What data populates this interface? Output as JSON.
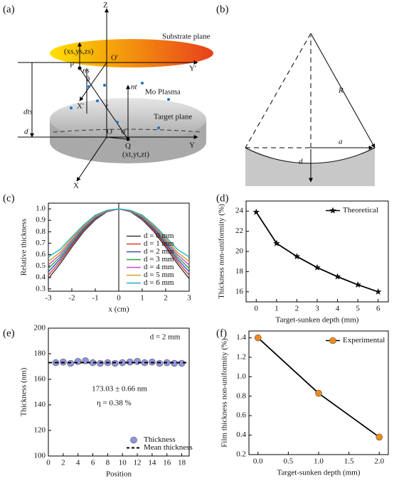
{
  "panel_labels": [
    "(a)",
    "(b)",
    "(c)",
    "(d)",
    "(e)",
    "(f)"
  ],
  "diagram_a": {
    "labels": [
      "Z",
      "Substrate plane",
      "O'",
      "Y'",
      "(xs,ys,zs)",
      "P",
      "ns",
      "θ",
      "X'",
      "nt",
      "Mo Plasma",
      "r",
      "Target plane",
      "O",
      "φ",
      "Q",
      "(xt,yt,zt)",
      "Y",
      "X",
      "dts",
      "d"
    ]
  },
  "diagram_b": {
    "labels": [
      "R",
      "a",
      "d"
    ]
  },
  "chart_data": [
    {
      "type": "line",
      "xlabel": "x (cm)",
      "ylabel": "Relative thickness",
      "x": [
        -3,
        -2.5,
        -2,
        -1.5,
        -1,
        -0.5,
        0,
        0.5,
        1,
        1.5,
        2,
        2.5,
        3
      ],
      "xlim": [
        -3,
        3
      ],
      "xticks": [
        -3,
        -2,
        -1,
        0,
        1,
        2,
        3
      ],
      "ylim": [
        0.28,
        1.05
      ],
      "yticks": [
        0.3,
        0.4,
        0.5,
        0.6,
        0.7,
        0.8,
        0.9,
        {
          "value": 1,
          "label": "1.0"
        }
      ],
      "legend": "lower right",
      "series": [
        {
          "name": "d = 0 mm",
          "color": "#3a3a3a",
          "values": [
            0.39,
            0.52,
            0.665,
            0.8,
            0.905,
            0.975,
            1,
            0.975,
            0.905,
            0.8,
            0.665,
            0.52,
            0.39
          ]
        },
        {
          "name": "d = 1 mm",
          "color": "#d93a3a",
          "values": [
            0.42,
            0.54,
            0.68,
            0.81,
            0.912,
            0.977,
            1,
            0.977,
            0.912,
            0.81,
            0.68,
            0.54,
            0.42
          ]
        },
        {
          "name": "d = 2 mm",
          "color": "#3b4cc0",
          "values": [
            0.45,
            0.56,
            0.695,
            0.82,
            0.918,
            0.979,
            1,
            0.979,
            0.918,
            0.82,
            0.695,
            0.56,
            0.45
          ]
        },
        {
          "name": "d = 3 mm",
          "color": "#2e9e3e",
          "values": [
            0.48,
            0.58,
            0.71,
            0.83,
            0.925,
            0.981,
            1,
            0.981,
            0.925,
            0.83,
            0.71,
            0.58,
            0.48
          ]
        },
        {
          "name": "d = 4 mm",
          "color": "#c04cc8",
          "values": [
            0.51,
            0.6,
            0.725,
            0.84,
            0.932,
            0.983,
            1,
            0.983,
            0.932,
            0.84,
            0.725,
            0.6,
            0.51
          ]
        },
        {
          "name": "d = 5 mm",
          "color": "#d4a017",
          "values": [
            0.54,
            0.62,
            0.74,
            0.85,
            0.938,
            0.985,
            1,
            0.985,
            0.938,
            0.85,
            0.74,
            0.62,
            0.54
          ]
        },
        {
          "name": "d = 6 mm",
          "color": "#22b0c4",
          "values": [
            0.58,
            0.645,
            0.755,
            0.86,
            0.945,
            0.987,
            1,
            0.987,
            0.945,
            0.86,
            0.755,
            0.645,
            0.58
          ]
        }
      ]
    },
    {
      "type": "line",
      "xlabel": "Target-sunken depth (mm)",
      "ylabel": "Thickness non-uniformity (%)",
      "x": [
        0,
        1,
        2,
        3,
        4,
        5,
        6
      ],
      "xlim": [
        -0.5,
        6.5
      ],
      "xticks": [
        0,
        1,
        2,
        3,
        4,
        5,
        6
      ],
      "ylim": [
        15,
        25
      ],
      "yticks": [
        16,
        18,
        20,
        22,
        24
      ],
      "legend": "upper right",
      "series": [
        {
          "name": "Theoretical",
          "color": "#111111",
          "marker": "star",
          "values": [
            23.9,
            20.8,
            19.5,
            18.4,
            17.5,
            16.7,
            16.0
          ]
        }
      ]
    },
    {
      "type": "scatter",
      "xlabel": "Position",
      "ylabel": "Thickness (nm)",
      "x": [
        1,
        2,
        3,
        4,
        5,
        6,
        7,
        8,
        9,
        10,
        11,
        12,
        13,
        14,
        15,
        16,
        17,
        18
      ],
      "xlim": [
        0,
        19
      ],
      "xticks": [
        0,
        2,
        4,
        6,
        8,
        10,
        12,
        14,
        16,
        18
      ],
      "ylim": [
        100,
        200
      ],
      "yticks": [
        100,
        120,
        140,
        160,
        180,
        200
      ],
      "legend": "lower right",
      "annotations": [
        "d = 2 mm",
        "173.03 ± 0.66 nm",
        "η = 0.38 %"
      ],
      "series": [
        {
          "name": "Thickness",
          "color": "#8f94e0",
          "marker": "circle",
          "values": [
            173,
            173.5,
            172.5,
            174,
            174.5,
            173,
            172.5,
            173,
            172.5,
            173,
            173.5,
            174,
            173,
            173.5,
            172.5,
            173,
            172.5,
            172.5
          ]
        }
      ],
      "mean_line": {
        "name": "Mean thickness",
        "value": 173.03
      }
    },
    {
      "type": "line",
      "xlabel": "Target-sunken depth (mm)",
      "ylabel": "Film thickness non-uniformity (%)",
      "x": [
        0,
        1,
        2
      ],
      "xlim": [
        -0.15,
        2.15
      ],
      "xticks": [
        {
          "value": 0,
          "label": "0.0"
        },
        0.5,
        {
          "value": 1,
          "label": "1.0"
        },
        1.5,
        {
          "value": 2,
          "label": "2.0"
        }
      ],
      "ylim": [
        0.2,
        1.47
      ],
      "yticks": [
        0.2,
        0.4,
        0.6,
        0.8,
        {
          "value": 1,
          "label": "1.0"
        },
        1.2,
        1.4
      ],
      "legend": "upper right",
      "series": [
        {
          "name": "Experimental",
          "color": "#f08a1c",
          "marker": "circle",
          "values": [
            1.4,
            0.83,
            0.38
          ]
        }
      ]
    }
  ]
}
